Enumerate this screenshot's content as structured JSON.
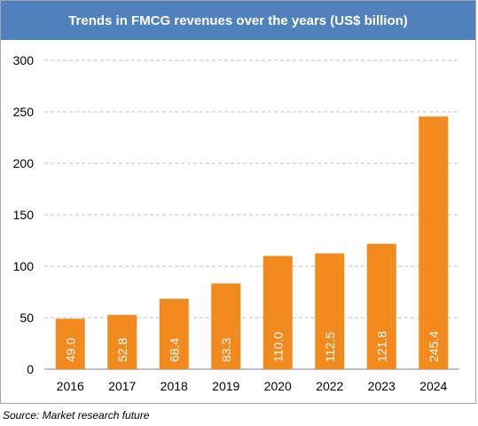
{
  "chart_data": {
    "type": "bar",
    "title": "Trends in FMCG revenues over the years (US$ billion)",
    "categories": [
      "2016",
      "2017",
      "2018",
      "2019",
      "2020",
      "2022",
      "2023",
      "2024"
    ],
    "values": [
      49.0,
      52.8,
      68.4,
      83.3,
      110.0,
      112.5,
      121.8,
      245.4
    ],
    "data_labels": [
      "49.0",
      "52.8",
      "68.4",
      "83.3",
      "110.0",
      "112.5",
      "121.8",
      "245.4"
    ],
    "y_ticks": [
      0,
      50,
      100,
      150,
      200,
      250,
      300
    ],
    "ylim": [
      0,
      300
    ],
    "grid": "dashed-horizontal",
    "legend": "none",
    "colors": {
      "bar": "#f28a1e",
      "title_bg": "#4f81bd",
      "grid": "#bfbfbf",
      "label": "#ffffff"
    }
  },
  "source": "Source: Market research future"
}
